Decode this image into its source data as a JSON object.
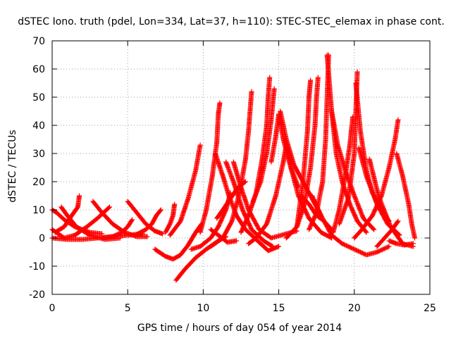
{
  "chart_data": {
    "type": "scatter",
    "title": "dSTEC Iono. truth (pdel, Lon=334, Lat=37, h=110): STEC-STEC_elemax in phase cont.",
    "xlabel": "GPS time / hours of day 054 of year 2014",
    "ylabel": "dSTEC  / TECUs",
    "xlim": [
      0,
      25
    ],
    "ylim": [
      -20,
      70
    ],
    "x_ticks": [
      0,
      5,
      10,
      15,
      20,
      25
    ],
    "y_ticks": [
      -20,
      -10,
      0,
      10,
      20,
      30,
      40,
      50,
      60,
      70
    ],
    "x_tick_labels": [
      "0",
      "5",
      "10",
      "15",
      "20",
      "25"
    ],
    "y_tick_labels": [
      "-20",
      "-10",
      "0",
      "10",
      "20",
      "30",
      "40",
      "50",
      "60",
      "70"
    ],
    "grid": true,
    "marker": "+",
    "color": "#ff0000",
    "arcs": [
      [
        [
          0.0,
          10.0
        ],
        [
          0.3,
          9.0
        ],
        [
          0.8,
          6.5
        ],
        [
          1.5,
          4.0
        ],
        [
          2.5,
          2.0
        ],
        [
          3.3,
          1.5
        ]
      ],
      [
        [
          0.0,
          3.0
        ],
        [
          0.8,
          0.0
        ],
        [
          1.5,
          1.0
        ],
        [
          2.3,
          4.0
        ],
        [
          3.0,
          7.0
        ],
        [
          3.8,
          11.0
        ]
      ],
      [
        [
          0.2,
          2.0
        ],
        [
          0.8,
          4.0
        ],
        [
          1.3,
          8.0
        ],
        [
          1.7,
          11.0
        ],
        [
          1.8,
          15.0
        ]
      ],
      [
        [
          0.6,
          11.0
        ],
        [
          1.0,
          8.0
        ],
        [
          1.6,
          4.0
        ],
        [
          2.5,
          1.0
        ],
        [
          3.5,
          -0.5
        ],
        [
          4.5,
          0.0
        ]
      ],
      [
        [
          0.0,
          0.0
        ],
        [
          1.0,
          -0.5
        ],
        [
          2.0,
          -0.5
        ],
        [
          3.0,
          0.0
        ],
        [
          4.0,
          0.5
        ],
        [
          5.0,
          1.0
        ],
        [
          6.0,
          1.5
        ]
      ],
      [
        [
          2.7,
          13.0
        ],
        [
          3.3,
          9.0
        ],
        [
          4.0,
          5.0
        ],
        [
          4.8,
          2.0
        ],
        [
          5.6,
          0.5
        ],
        [
          6.3,
          0.5
        ]
      ],
      [
        [
          3.3,
          0.0
        ],
        [
          4.0,
          0.5
        ],
        [
          4.6,
          2.0
        ],
        [
          5.0,
          4.0
        ],
        [
          5.3,
          6.5
        ]
      ],
      [
        [
          5.0,
          13.0
        ],
        [
          5.6,
          9.0
        ],
        [
          6.2,
          5.0
        ],
        [
          6.8,
          2.5
        ],
        [
          7.3,
          1.5
        ]
      ],
      [
        [
          5.5,
          1.0
        ],
        [
          6.2,
          3.0
        ],
        [
          6.6,
          5.0
        ],
        [
          6.9,
          8.0
        ],
        [
          7.2,
          10.0
        ]
      ],
      [
        [
          6.8,
          -4.0
        ],
        [
          7.5,
          -6.5
        ],
        [
          8.0,
          -7.5
        ],
        [
          8.5,
          -6.0
        ],
        [
          9.0,
          -2.5
        ],
        [
          9.5,
          2.0
        ],
        [
          9.9,
          5.0
        ]
      ],
      [
        [
          7.5,
          2.0
        ],
        [
          7.8,
          5.0
        ],
        [
          8.0,
          8.0
        ],
        [
          8.1,
          12.0
        ]
      ],
      [
        [
          8.2,
          -15.0
        ],
        [
          8.8,
          -11.0
        ],
        [
          9.5,
          -7.0
        ],
        [
          10.2,
          -4.0
        ],
        [
          11.0,
          -1.0
        ],
        [
          11.5,
          0.5
        ]
      ],
      [
        [
          7.8,
          1.0
        ],
        [
          8.5,
          6.0
        ],
        [
          9.0,
          14.0
        ],
        [
          9.5,
          24.0
        ],
        [
          9.8,
          33.0
        ]
      ],
      [
        [
          9.2,
          -4.0
        ],
        [
          9.8,
          -3.0
        ],
        [
          10.5,
          0.0
        ],
        [
          11.0,
          4.0
        ],
        [
          11.5,
          10.0
        ],
        [
          11.8,
          16.0
        ]
      ],
      [
        [
          9.8,
          2.0
        ],
        [
          10.2,
          10.0
        ],
        [
          10.6,
          22.0
        ],
        [
          10.9,
          34.0
        ],
        [
          11.0,
          44.0
        ],
        [
          11.1,
          48.0
        ]
      ],
      [
        [
          10.5,
          3.0
        ],
        [
          11.0,
          1.0
        ],
        [
          11.6,
          -1.5
        ],
        [
          12.2,
          -1.0
        ]
      ],
      [
        [
          10.5,
          -3.0
        ],
        [
          11.3,
          0.0
        ],
        [
          11.9,
          6.0
        ],
        [
          12.4,
          16.0
        ],
        [
          12.8,
          28.0
        ],
        [
          13.0,
          38.0
        ],
        [
          13.2,
          52.0
        ]
      ],
      [
        [
          10.9,
          7.0
        ],
        [
          11.3,
          10.0
        ],
        [
          11.8,
          14.0
        ],
        [
          12.3,
          18.0
        ],
        [
          12.8,
          20.0
        ]
      ],
      [
        [
          10.8,
          30.0
        ],
        [
          11.3,
          22.0
        ],
        [
          11.7,
          15.0
        ],
        [
          12.2,
          8.0
        ],
        [
          12.8,
          3.0
        ],
        [
          13.6,
          -1.0
        ],
        [
          14.3,
          -4.5
        ],
        [
          15.0,
          -3.0
        ]
      ],
      [
        [
          11.5,
          27.0
        ],
        [
          12.0,
          20.0
        ],
        [
          12.6,
          10.0
        ],
        [
          13.2,
          3.0
        ],
        [
          14.0,
          -1.0
        ],
        [
          14.6,
          -3.0
        ]
      ],
      [
        [
          12.0,
          27.0
        ],
        [
          12.5,
          18.0
        ],
        [
          13.0,
          10.0
        ],
        [
          13.7,
          3.0
        ],
        [
          14.5,
          0.0
        ],
        [
          15.5,
          1.5
        ],
        [
          16.2,
          2.5
        ]
      ],
      [
        [
          12.5,
          2.0
        ],
        [
          13.0,
          8.0
        ],
        [
          13.5,
          16.0
        ],
        [
          13.9,
          28.0
        ],
        [
          14.2,
          40.0
        ],
        [
          14.3,
          50.0
        ],
        [
          14.4,
          57.0
        ]
      ],
      [
        [
          13.3,
          13.0
        ],
        [
          13.8,
          20.0
        ],
        [
          14.2,
          30.0
        ],
        [
          14.5,
          42.0
        ],
        [
          14.7,
          53.0
        ]
      ],
      [
        [
          14.5,
          27.0
        ],
        [
          14.8,
          36.0
        ],
        [
          15.0,
          44.0
        ],
        [
          15.3,
          35.0
        ],
        [
          15.8,
          25.0
        ],
        [
          16.3,
          18.0
        ]
      ],
      [
        [
          15.1,
          45.0
        ],
        [
          15.5,
          35.0
        ],
        [
          16.0,
          26.0
        ],
        [
          16.6,
          20.0
        ],
        [
          17.2,
          14.0
        ],
        [
          17.8,
          8.0
        ]
      ],
      [
        [
          13.0,
          -2.0
        ],
        [
          13.5,
          0.0
        ],
        [
          14.2,
          5.0
        ],
        [
          14.8,
          15.0
        ],
        [
          15.3,
          27.0
        ],
        [
          15.5,
          33.0
        ]
      ],
      [
        [
          15.4,
          35.0
        ],
        [
          15.8,
          25.0
        ],
        [
          16.3,
          15.0
        ],
        [
          17.0,
          7.0
        ],
        [
          17.8,
          2.0
        ],
        [
          18.5,
          0.0
        ]
      ],
      [
        [
          15.5,
          0.0
        ],
        [
          16.2,
          4.0
        ],
        [
          16.7,
          12.0
        ],
        [
          17.1,
          25.0
        ],
        [
          17.4,
          40.0
        ],
        [
          17.5,
          50.0
        ],
        [
          17.6,
          57.0
        ]
      ],
      [
        [
          16.2,
          4.0
        ],
        [
          16.6,
          20.0
        ],
        [
          16.9,
          38.0
        ],
        [
          17.0,
          50.0
        ],
        [
          17.1,
          56.0
        ]
      ],
      [
        [
          16.5,
          15.0
        ],
        [
          17.0,
          12.0
        ],
        [
          17.5,
          8.0
        ],
        [
          18.0,
          6.0
        ],
        [
          18.5,
          3.0
        ]
      ],
      [
        [
          17.0,
          3.0
        ],
        [
          17.5,
          9.0
        ],
        [
          17.9,
          20.0
        ],
        [
          18.1,
          35.0
        ],
        [
          18.2,
          50.0
        ],
        [
          18.3,
          65.0
        ]
      ],
      [
        [
          18.2,
          65.0
        ],
        [
          18.5,
          45.0
        ],
        [
          18.8,
          30.0
        ],
        [
          19.2,
          20.0
        ],
        [
          19.7,
          12.0
        ],
        [
          20.2,
          6.0
        ],
        [
          20.8,
          2.0
        ]
      ],
      [
        [
          18.5,
          45.0
        ],
        [
          18.9,
          33.0
        ],
        [
          19.4,
          24.0
        ],
        [
          20.0,
          15.0
        ],
        [
          20.6,
          7.0
        ],
        [
          21.3,
          3.0
        ]
      ],
      [
        [
          17.2,
          15.0
        ],
        [
          17.8,
          8.0
        ],
        [
          18.5,
          1.0
        ],
        [
          19.2,
          -2.0
        ],
        [
          20.0,
          -4.0
        ],
        [
          20.8,
          -6.0
        ],
        [
          21.5,
          -5.0
        ],
        [
          22.3,
          -3.0
        ]
      ],
      [
        [
          18.6,
          2.0
        ],
        [
          19.0,
          10.0
        ],
        [
          19.4,
          22.0
        ],
        [
          19.7,
          33.0
        ],
        [
          19.9,
          43.0
        ]
      ],
      [
        [
          19.0,
          5.0
        ],
        [
          19.6,
          14.0
        ],
        [
          20.0,
          30.0
        ],
        [
          20.1,
          45.0
        ],
        [
          20.2,
          59.0
        ]
      ],
      [
        [
          20.1,
          55.0
        ],
        [
          20.4,
          38.0
        ],
        [
          20.8,
          24.0
        ],
        [
          21.2,
          16.0
        ],
        [
          21.8,
          10.0
        ],
        [
          22.3,
          6.0
        ]
      ],
      [
        [
          20.3,
          32.0
        ],
        [
          20.8,
          22.0
        ],
        [
          21.5,
          12.0
        ],
        [
          22.2,
          5.0
        ],
        [
          23.0,
          1.0
        ]
      ],
      [
        [
          21.0,
          28.0
        ],
        [
          21.6,
          15.0
        ],
        [
          22.4,
          4.0
        ],
        [
          23.2,
          -2.0
        ],
        [
          23.9,
          -3.0
        ]
      ],
      [
        [
          20.0,
          0.0
        ],
        [
          20.5,
          3.0
        ],
        [
          21.2,
          8.0
        ],
        [
          21.8,
          15.0
        ],
        [
          22.3,
          25.0
        ],
        [
          22.7,
          35.0
        ],
        [
          22.9,
          42.0
        ]
      ],
      [
        [
          22.8,
          30.0
        ],
        [
          23.2,
          22.0
        ],
        [
          23.6,
          12.0
        ],
        [
          23.8,
          5.0
        ],
        [
          24.0,
          0.0
        ]
      ],
      [
        [
          21.5,
          -3.0
        ],
        [
          22.0,
          0.0
        ],
        [
          22.5,
          3.0
        ],
        [
          22.9,
          6.0
        ]
      ],
      [
        [
          22.3,
          -1.0
        ],
        [
          22.8,
          -2.0
        ],
        [
          23.3,
          -2.5
        ],
        [
          23.9,
          -2.0
        ]
      ]
    ]
  }
}
